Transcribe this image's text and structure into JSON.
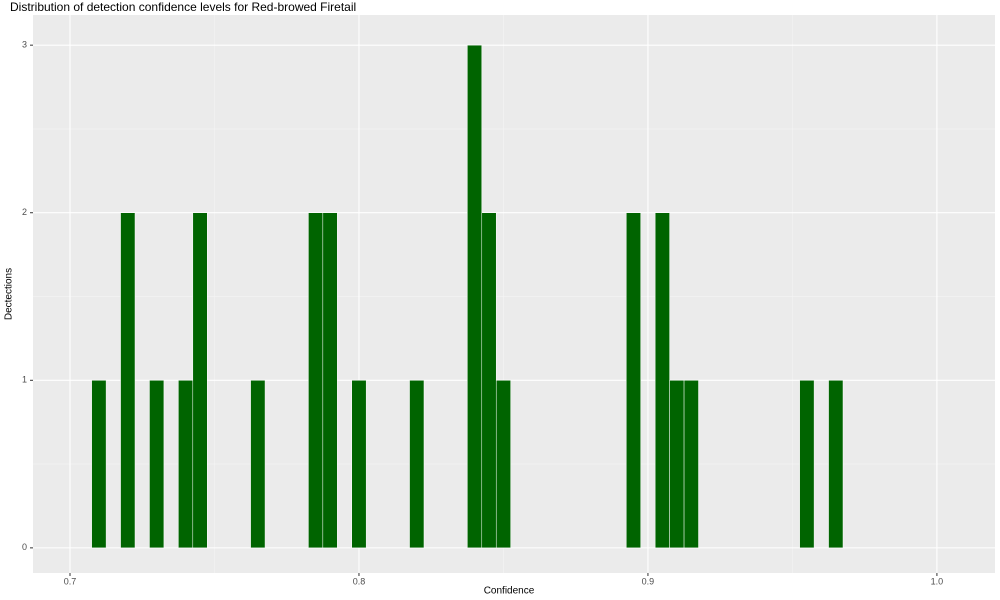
{
  "chart_data": {
    "type": "histogram",
    "title": "Distribution of detection confidence levels for Red-browed Firetail",
    "xlabel": "Confidence",
    "ylabel": "Dectections",
    "bins": [
      0.7075,
      0.7125,
      0.7175,
      0.7225,
      0.7275,
      0.7325,
      0.7375,
      0.7425,
      0.7475,
      0.7525,
      0.7575,
      0.7625,
      0.7675,
      0.7725,
      0.7775,
      0.7825,
      0.7875,
      0.7925,
      0.7975,
      0.8025,
      0.8075,
      0.8125,
      0.8175,
      0.8225,
      0.8275,
      0.8325,
      0.8375,
      0.8425,
      0.8475,
      0.8525,
      0.8575,
      0.8625,
      0.8675,
      0.8725,
      0.8775,
      0.8825,
      0.8875,
      0.8925,
      0.8975,
      0.9025,
      0.9075,
      0.9125,
      0.9175,
      0.9225,
      0.9275,
      0.9325,
      0.9375,
      0.9425,
      0.9475,
      0.9525,
      0.9575,
      0.9625,
      0.9675
    ],
    "values": [
      1,
      0,
      2,
      0,
      1,
      0,
      1,
      2,
      0,
      0,
      0,
      1,
      0,
      0,
      0,
      2,
      2,
      0,
      1,
      0,
      0,
      0,
      1,
      0,
      0,
      0,
      3,
      2,
      1,
      0,
      0,
      0,
      0,
      0,
      0,
      0,
      0,
      2,
      0,
      2,
      1,
      1,
      0,
      0,
      0,
      0,
      0,
      0,
      0,
      1,
      0,
      1
    ],
    "color": "#006400",
    "xlim": [
      0.6872,
      1.0201
    ],
    "ylim": [
      -0.15,
      3.18
    ],
    "xticks": [
      0.7,
      0.8,
      0.9,
      {
        "value": 1,
        "label": "1.0"
      }
    ],
    "yticks": [
      0,
      1,
      2,
      3
    ],
    "xminor": [
      0.75,
      0.85,
      0.95
    ],
    "yminor": [
      0.5,
      1.5,
      2.5
    ],
    "grid": true
  }
}
